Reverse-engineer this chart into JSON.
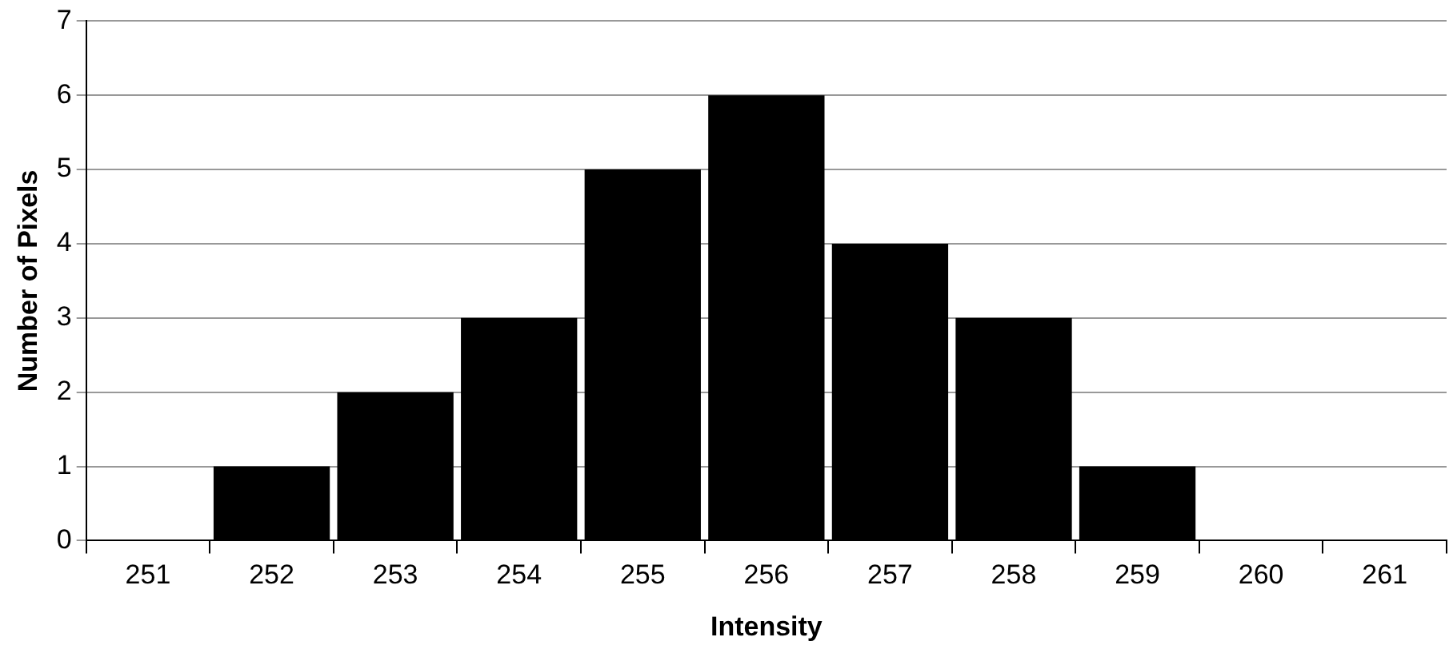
{
  "chart_data": {
    "type": "bar",
    "xlabel": "Intensity",
    "ylabel": "Number of Pixels",
    "categories": [
      "251",
      "252",
      "253",
      "254",
      "255",
      "256",
      "257",
      "258",
      "259",
      "260",
      "261"
    ],
    "values": [
      0,
      1,
      2,
      3,
      5,
      6,
      4,
      3,
      1,
      0,
      0
    ],
    "color": "#000000",
    "ylim": [
      0,
      7
    ],
    "yticks": [
      0,
      1,
      2,
      3,
      4,
      5,
      6,
      7
    ],
    "grid": "y",
    "legend": false
  }
}
